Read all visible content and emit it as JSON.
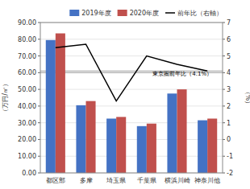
{
  "chart_data": {
    "type": "bar",
    "categories": [
      "都区部",
      "多摩",
      "埼玉県",
      "千葉県",
      "横浜川崎",
      "神奈川他"
    ],
    "series": [
      {
        "name": "2019年度",
        "color": "#4472C4",
        "values": [
          79.5,
          40.5,
          32.5,
          28.0,
          47.5,
          31.5
        ]
      },
      {
        "name": "2020年度",
        "color": "#C0504D",
        "values": [
          83.5,
          43.0,
          33.5,
          29.5,
          50.0,
          32.5
        ]
      },
      {
        "name": "前年比（右軸）",
        "type": "line",
        "axis": "y2",
        "color": "#000000",
        "values": [
          5.5,
          5.7,
          2.3,
          5.0,
          4.5,
          4.1
        ]
      }
    ],
    "ylabel": "（万円/㎡）",
    "y2label": "（%）",
    "ylim": [
      0.0,
      90.0
    ],
    "yticks": [
      {
        "value": 0.0,
        "label": "0.00"
      },
      {
        "value": 10.0,
        "label": "10.00"
      },
      {
        "value": 20.0,
        "label": "20.00"
      },
      {
        "value": 30.0,
        "label": "30.00"
      },
      {
        "value": 40.0,
        "label": "40.00"
      },
      {
        "value": 50.0,
        "label": "50.00"
      },
      {
        "value": 60.0,
        "label": "60.00"
      },
      {
        "value": 70.0,
        "label": "70.00"
      },
      {
        "value": 80.0,
        "label": "80.00"
      },
      {
        "value": 90.0,
        "label": "90.00"
      }
    ],
    "y2lim": [
      -2.0,
      7.0
    ],
    "y2ticks": [
      -2,
      -1,
      0,
      1,
      2,
      3,
      4,
      5,
      6,
      7
    ],
    "reference_lines": [
      {
        "value": 60.0,
        "axis": "y",
        "color": "#A0A0A0"
      },
      {
        "value": 4.1,
        "axis": "y2",
        "color": "#A0A0A0"
      }
    ],
    "annotations": [
      {
        "text": "東京圏前年比（4.1%）",
        "x": 3.2,
        "y": 3.8,
        "axis": "y2"
      }
    ],
    "grid": true,
    "legend": "upper right"
  }
}
